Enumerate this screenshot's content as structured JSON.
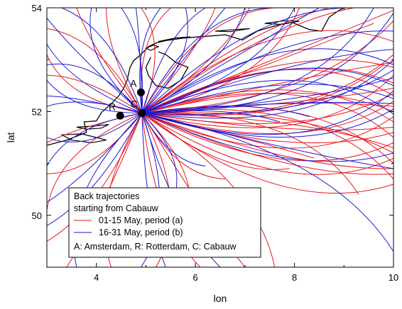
{
  "chart_data": {
    "type": "line",
    "title": "",
    "xlabel": "lon",
    "ylabel": "lat",
    "xlim": [
      3,
      10
    ],
    "ylim": [
      49,
      54
    ],
    "x_ticks": [
      "4",
      "6",
      "8",
      "10"
    ],
    "y_ticks": [
      "50",
      "52",
      "54"
    ],
    "grid": false,
    "legend": {
      "placement": "bottom-left",
      "title_lines": [
        "Back trajectories",
        "starting from Cabauw"
      ],
      "entries": [
        {
          "label": "01-15 May, period (a)",
          "color": "#e8141e"
        },
        {
          "label": "16-31 May, period (b)",
          "color": "#1a1ad6"
        }
      ],
      "note": "A: Amsterdam, R: Rotterdam, C: Cabauw"
    },
    "origin": {
      "lon": 4.92,
      "lat": 51.97
    },
    "sites": [
      {
        "label": "A",
        "lon": 4.9,
        "lat": 52.37
      },
      {
        "label": "R",
        "lon": 4.48,
        "lat": 51.92
      },
      {
        "label": "C",
        "lon": 4.92,
        "lat": 51.97
      }
    ],
    "series": [
      {
        "name": "01-15 May, period (a)",
        "color": "#e8141e",
        "endpoints": [
          [
            10,
            53.95
          ],
          [
            10,
            53.75
          ],
          [
            10,
            53.35
          ],
          [
            10,
            53.1
          ],
          [
            10,
            52.95
          ],
          [
            10,
            52.85
          ],
          [
            10,
            52.7
          ],
          [
            10,
            52.55
          ],
          [
            10,
            52.45
          ],
          [
            10,
            52.35
          ],
          [
            10,
            52.3
          ],
          [
            10,
            52.2
          ],
          [
            10,
            52.1
          ],
          [
            10,
            52.0
          ],
          [
            10,
            51.9
          ],
          [
            10,
            51.8
          ],
          [
            10,
            51.7
          ],
          [
            10,
            51.6
          ],
          [
            10,
            51.5
          ],
          [
            10,
            51.4
          ],
          [
            10,
            51.3
          ],
          [
            10,
            51.2
          ],
          [
            10,
            51.1
          ],
          [
            10,
            51.0
          ],
          [
            10,
            50.9
          ],
          [
            10,
            50.8
          ],
          [
            10,
            50.7
          ],
          [
            10,
            50.6
          ],
          [
            9.2,
            54
          ],
          [
            8.7,
            54
          ],
          [
            8.1,
            54
          ],
          [
            7.6,
            54
          ],
          [
            7.1,
            54
          ],
          [
            6.4,
            54
          ],
          [
            5.5,
            54
          ],
          [
            4.9,
            54
          ],
          [
            4.2,
            54
          ],
          [
            3.6,
            54
          ],
          [
            3,
            53.6
          ],
          [
            3,
            53.1
          ],
          [
            3,
            52.7
          ],
          [
            3,
            51.4
          ],
          [
            3,
            50.8
          ],
          [
            3,
            50.1
          ],
          [
            3,
            49.5
          ],
          [
            3.4,
            49
          ],
          [
            4.3,
            49
          ],
          [
            5.2,
            49
          ],
          [
            6.1,
            49
          ],
          [
            7.0,
            49
          ],
          [
            7.6,
            49
          ],
          [
            6.6,
            50.7
          ],
          [
            5.9,
            50.3
          ],
          [
            8.4,
            51.1
          ],
          [
            7.9,
            50.9
          ],
          [
            9.3,
            50.4
          ],
          [
            9.8,
            52.9
          ],
          [
            9.6,
            53.7
          ]
        ]
      },
      {
        "name": "16-31 May, period (b)",
        "color": "#1a1ad6",
        "endpoints": [
          [
            10,
            53.9
          ],
          [
            10,
            53.55
          ],
          [
            10,
            53.2
          ],
          [
            10,
            53.0
          ],
          [
            10,
            52.9
          ],
          [
            10,
            52.8
          ],
          [
            10,
            52.65
          ],
          [
            10,
            52.5
          ],
          [
            10,
            52.4
          ],
          [
            10,
            52.25
          ],
          [
            10,
            52.15
          ],
          [
            10,
            52.05
          ],
          [
            10,
            51.95
          ],
          [
            10,
            51.2
          ],
          [
            10,
            50.9
          ],
          [
            10,
            49.3
          ],
          [
            9.6,
            54
          ],
          [
            9.1,
            54
          ],
          [
            8.5,
            54
          ],
          [
            8.0,
            54
          ],
          [
            7.5,
            54
          ],
          [
            7.0,
            54
          ],
          [
            6.6,
            54
          ],
          [
            6.2,
            54
          ],
          [
            5.8,
            54
          ],
          [
            5.3,
            54
          ],
          [
            4.8,
            54
          ],
          [
            4.5,
            54
          ],
          [
            3.9,
            54
          ],
          [
            3.3,
            54
          ],
          [
            3,
            53.8
          ],
          [
            3,
            53.3
          ],
          [
            3,
            52.9
          ],
          [
            3,
            52.6
          ],
          [
            3,
            52.3
          ],
          [
            3,
            52.1
          ],
          [
            3,
            51.5
          ],
          [
            3,
            50.95
          ],
          [
            3,
            50.25
          ],
          [
            3,
            49.8
          ],
          [
            3.6,
            49
          ],
          [
            4.9,
            49
          ],
          [
            5.4,
            49
          ],
          [
            6.5,
            49
          ],
          [
            5.6,
            50.45
          ],
          [
            6.2,
            50.95
          ],
          [
            7.7,
            51.8
          ],
          [
            8.3,
            51.9
          ]
        ]
      }
    ],
    "map_outline": {
      "color": "#000000",
      "coastline": [
        [
          3.0,
          51.35
        ],
        [
          3.4,
          51.45
        ],
        [
          3.8,
          51.6
        ],
        [
          3.75,
          51.8
        ],
        [
          4.0,
          51.82
        ],
        [
          4.1,
          51.98
        ],
        [
          4.3,
          52.15
        ],
        [
          4.45,
          52.3
        ],
        [
          4.55,
          52.45
        ],
        [
          4.62,
          52.6
        ],
        [
          4.68,
          52.85
        ],
        [
          4.75,
          52.98
        ],
        [
          4.9,
          53.1
        ],
        [
          5.05,
          53.25
        ],
        [
          5.2,
          53.32
        ],
        [
          5.45,
          53.38
        ],
        [
          5.8,
          53.42
        ],
        [
          6.2,
          53.45
        ],
        [
          6.6,
          53.48
        ],
        [
          6.95,
          53.38
        ],
        [
          7.25,
          53.55
        ],
        [
          7.6,
          53.65
        ],
        [
          7.95,
          53.72
        ],
        [
          8.3,
          53.58
        ],
        [
          8.55,
          53.55
        ],
        [
          8.7,
          53.82
        ],
        [
          8.9,
          53.95
        ],
        [
          9.0,
          54.0
        ]
      ],
      "inner_shore": [
        [
          5.1,
          53.05
        ],
        [
          5.0,
          52.85
        ],
        [
          5.05,
          52.7
        ],
        [
          5.2,
          52.5
        ],
        [
          5.45,
          52.45
        ],
        [
          5.7,
          52.6
        ],
        [
          5.85,
          52.85
        ],
        [
          5.6,
          52.95
        ],
        [
          5.4,
          53.1
        ],
        [
          5.25,
          53.15
        ]
      ],
      "islands": [
        [
          [
            5.0,
            53.22
          ],
          [
            5.15,
            53.28
          ],
          [
            5.25,
            53.25
          ],
          [
            5.1,
            53.18
          ]
        ],
        [
          [
            5.25,
            53.35
          ],
          [
            5.6,
            53.42
          ],
          [
            5.9,
            53.44
          ],
          [
            5.5,
            53.38
          ]
        ],
        [
          [
            6.4,
            53.55
          ],
          [
            6.8,
            53.58
          ],
          [
            7.1,
            53.6
          ],
          [
            6.7,
            53.54
          ]
        ],
        [
          [
            7.4,
            53.7
          ],
          [
            7.8,
            53.75
          ],
          [
            8.1,
            53.74
          ],
          [
            7.7,
            53.68
          ]
        ]
      ],
      "estuaries": [
        [
          [
            3.3,
            51.55
          ],
          [
            3.7,
            51.57
          ],
          [
            4.0,
            51.5
          ],
          [
            4.2,
            51.45
          ],
          [
            3.9,
            51.4
          ],
          [
            3.5,
            51.45
          ]
        ],
        [
          [
            3.6,
            51.7
          ],
          [
            3.95,
            51.72
          ],
          [
            4.25,
            51.75
          ],
          [
            4.1,
            51.68
          ],
          [
            3.8,
            51.66
          ]
        ]
      ]
    }
  }
}
